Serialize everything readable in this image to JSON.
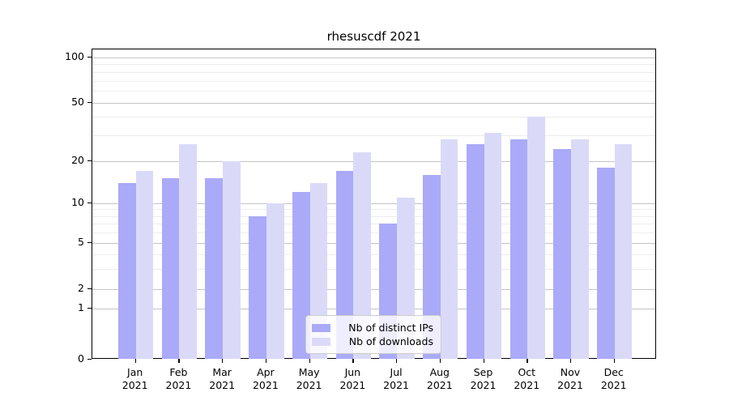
{
  "figure": {
    "background": "#ffffff"
  },
  "chart_data": {
    "type": "bar",
    "title": "rhesuscdf 2021",
    "categories": [
      "Jan 2021",
      "Feb 2021",
      "Mar 2021",
      "Apr 2021",
      "May 2021",
      "Jun 2021",
      "Jul 2021",
      "Aug 2021",
      "Sep 2021",
      "Oct 2021",
      "Nov 2021",
      "Dec 2021"
    ],
    "x_tick_months": [
      "Jan",
      "Feb",
      "Mar",
      "Apr",
      "May",
      "Jun",
      "Jul",
      "Aug",
      "Sep",
      "Oct",
      "Nov",
      "Dec"
    ],
    "x_tick_year": "2021",
    "series": [
      {
        "name": "Nb of distinct IPs",
        "color": "#aaaaf8",
        "values": [
          14,
          15,
          15,
          8,
          12,
          17,
          7,
          16,
          26,
          28,
          24,
          18
        ]
      },
      {
        "name": "Nb of downloads",
        "color": "#dadaf8",
        "values": [
          17,
          26,
          20,
          10,
          14,
          23,
          11,
          28,
          31,
          40,
          28,
          26
        ]
      }
    ],
    "xlabel": "",
    "ylabel": "",
    "y_axis": {
      "scale": "symlog",
      "major_ticks": [
        0,
        1,
        2,
        5,
        10,
        20,
        50,
        100
      ],
      "minor_gridlines": [
        3,
        4,
        6,
        7,
        8,
        9,
        30,
        40,
        60,
        70,
        80,
        90
      ],
      "ylim": [
        0,
        113
      ]
    },
    "grid": true,
    "legend": {
      "position": "lower center",
      "labels": [
        "Nb of distinct IPs",
        "Nb of downloads"
      ]
    },
    "colors": {
      "bar_dark": "#aaaaf8",
      "bar_light": "#dadaf8",
      "major_grid": "#c4c4c4",
      "minor_grid": "#ededed",
      "spine": "#000000",
      "text": "#000000"
    }
  }
}
